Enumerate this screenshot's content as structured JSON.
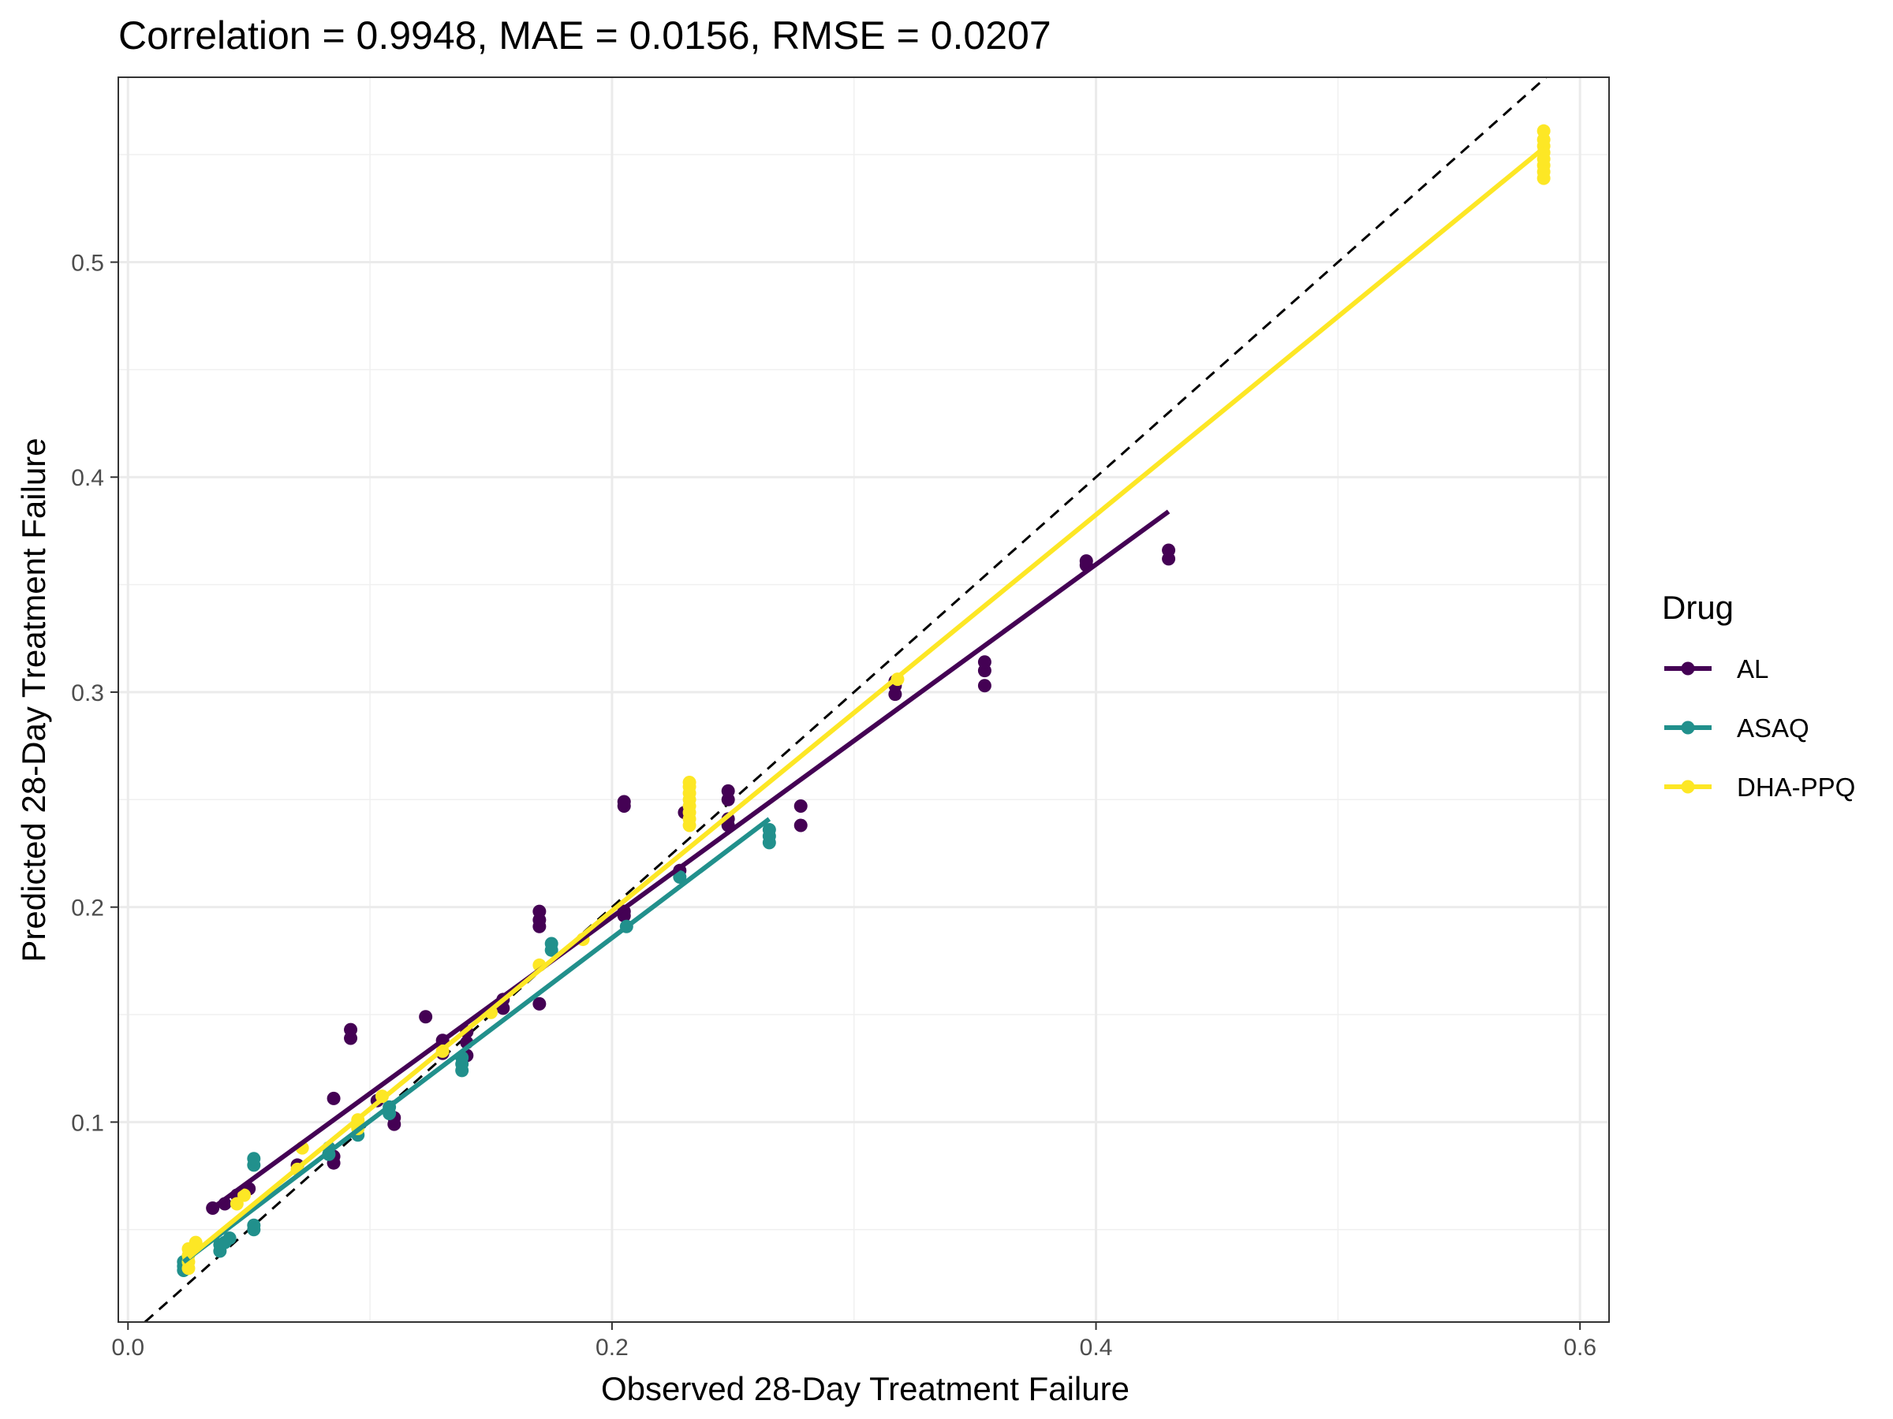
{
  "chart_data": {
    "type": "scatter",
    "title": "Correlation = 0.9948, MAE = 0.0156, RMSE = 0.0207",
    "xlabel": "Observed 28-Day Treatment Failure",
    "ylabel": "Predicted 28-Day Treatment Failure",
    "xlim": [
      -0.004,
      0.612
    ],
    "ylim": [
      0.007,
      0.586
    ],
    "x_ticks": [
      0.0,
      0.2,
      0.4,
      0.6
    ],
    "x_tick_labels": [
      "0.0",
      "0.2",
      "0.4",
      "0.6"
    ],
    "y_ticks": [
      0.1,
      0.2,
      0.3,
      0.4,
      0.5
    ],
    "y_tick_labels": [
      "0.1",
      "0.2",
      "0.3",
      "0.4",
      "0.5"
    ],
    "grid": true,
    "identity_line": true,
    "legend": {
      "title": "Drug",
      "position": "right"
    },
    "series": [
      {
        "name": "AL",
        "color": "#440154",
        "points": [
          [
            0.035,
            0.06
          ],
          [
            0.04,
            0.062
          ],
          [
            0.045,
            0.066
          ],
          [
            0.05,
            0.069
          ],
          [
            0.07,
            0.08
          ],
          [
            0.085,
            0.081
          ],
          [
            0.085,
            0.084
          ],
          [
            0.085,
            0.111
          ],
          [
            0.092,
            0.139
          ],
          [
            0.092,
            0.143
          ],
          [
            0.095,
            0.098
          ],
          [
            0.103,
            0.11
          ],
          [
            0.11,
            0.099
          ],
          [
            0.11,
            0.102
          ],
          [
            0.123,
            0.149
          ],
          [
            0.13,
            0.132
          ],
          [
            0.13,
            0.138
          ],
          [
            0.14,
            0.131
          ],
          [
            0.14,
            0.137
          ],
          [
            0.14,
            0.142
          ],
          [
            0.155,
            0.153
          ],
          [
            0.155,
            0.157
          ],
          [
            0.17,
            0.155
          ],
          [
            0.17,
            0.191
          ],
          [
            0.17,
            0.194
          ],
          [
            0.17,
            0.198
          ],
          [
            0.205,
            0.196
          ],
          [
            0.205,
            0.198
          ],
          [
            0.205,
            0.247
          ],
          [
            0.205,
            0.249
          ],
          [
            0.228,
            0.217
          ],
          [
            0.23,
            0.244
          ],
          [
            0.248,
            0.238
          ],
          [
            0.248,
            0.241
          ],
          [
            0.248,
            0.25
          ],
          [
            0.248,
            0.254
          ],
          [
            0.278,
            0.238
          ],
          [
            0.278,
            0.247
          ],
          [
            0.317,
            0.299
          ],
          [
            0.317,
            0.303
          ],
          [
            0.317,
            0.305
          ],
          [
            0.354,
            0.303
          ],
          [
            0.354,
            0.31
          ],
          [
            0.354,
            0.314
          ],
          [
            0.396,
            0.359
          ],
          [
            0.396,
            0.361
          ],
          [
            0.43,
            0.362
          ],
          [
            0.43,
            0.366
          ]
        ],
        "fit": [
          [
            0.035,
            0.06
          ],
          [
            0.43,
            0.384
          ]
        ]
      },
      {
        "name": "ASAQ",
        "color": "#21908C",
        "points": [
          [
            0.023,
            0.031
          ],
          [
            0.023,
            0.033
          ],
          [
            0.023,
            0.035
          ],
          [
            0.038,
            0.04
          ],
          [
            0.038,
            0.043
          ],
          [
            0.04,
            0.044
          ],
          [
            0.042,
            0.046
          ],
          [
            0.052,
            0.05
          ],
          [
            0.052,
            0.052
          ],
          [
            0.052,
            0.08
          ],
          [
            0.052,
            0.083
          ],
          [
            0.083,
            0.085
          ],
          [
            0.083,
            0.088
          ],
          [
            0.095,
            0.094
          ],
          [
            0.108,
            0.104
          ],
          [
            0.108,
            0.107
          ],
          [
            0.138,
            0.124
          ],
          [
            0.138,
            0.127
          ],
          [
            0.138,
            0.13
          ],
          [
            0.175,
            0.18
          ],
          [
            0.175,
            0.183
          ],
          [
            0.206,
            0.191
          ],
          [
            0.228,
            0.214
          ],
          [
            0.265,
            0.23
          ],
          [
            0.265,
            0.233
          ],
          [
            0.265,
            0.236
          ]
        ],
        "fit": [
          [
            0.023,
            0.035
          ],
          [
            0.265,
            0.241
          ]
        ]
      },
      {
        "name": "DHA-PPQ",
        "color": "#FDE725",
        "points": [
          [
            0.025,
            0.032
          ],
          [
            0.025,
            0.035
          ],
          [
            0.025,
            0.038
          ],
          [
            0.025,
            0.041
          ],
          [
            0.028,
            0.044
          ],
          [
            0.045,
            0.062
          ],
          [
            0.048,
            0.066
          ],
          [
            0.07,
            0.078
          ],
          [
            0.072,
            0.088
          ],
          [
            0.095,
            0.097
          ],
          [
            0.095,
            0.101
          ],
          [
            0.105,
            0.112
          ],
          [
            0.13,
            0.133
          ],
          [
            0.15,
            0.151
          ],
          [
            0.17,
            0.173
          ],
          [
            0.188,
            0.185
          ],
          [
            0.232,
            0.238
          ],
          [
            0.232,
            0.241
          ],
          [
            0.232,
            0.244
          ],
          [
            0.232,
            0.247
          ],
          [
            0.232,
            0.25
          ],
          [
            0.232,
            0.253
          ],
          [
            0.232,
            0.256
          ],
          [
            0.232,
            0.258
          ],
          [
            0.318,
            0.306
          ],
          [
            0.585,
            0.539
          ],
          [
            0.585,
            0.542
          ],
          [
            0.585,
            0.545
          ],
          [
            0.585,
            0.548
          ],
          [
            0.585,
            0.551
          ],
          [
            0.585,
            0.554
          ],
          [
            0.585,
            0.557
          ],
          [
            0.585,
            0.561
          ]
        ],
        "fit": [
          [
            0.025,
            0.037
          ],
          [
            0.585,
            0.553
          ]
        ]
      }
    ]
  }
}
